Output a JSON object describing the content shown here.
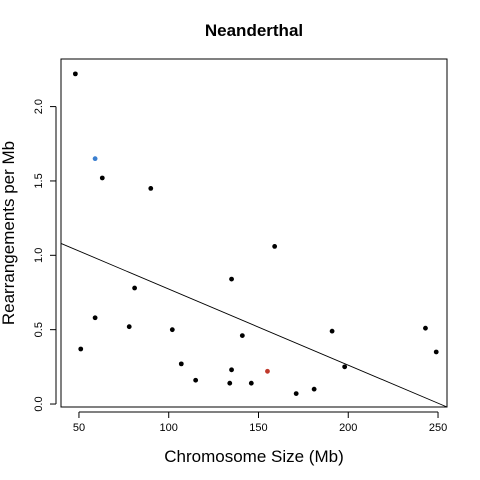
{
  "chart_data": {
    "type": "scatter",
    "title": "Neanderthal",
    "xlabel": "Chromosome Size (Mb)",
    "ylabel": "Rearrangements per Mb",
    "xlim": [
      40,
      255
    ],
    "ylim": [
      -0.02,
      2.32
    ],
    "xticks": [
      50,
      100,
      150,
      200,
      250
    ],
    "yticks": [
      0.0,
      0.5,
      1.0,
      1.5,
      2.0
    ],
    "ytick_labels": [
      "0.0",
      "0.5",
      "1.0",
      "1.5",
      "2.0"
    ],
    "grid": false,
    "points": [
      {
        "x": 48,
        "y": 2.22,
        "color": "#000000"
      },
      {
        "x": 59,
        "y": 1.65,
        "color": "#3a7fd0"
      },
      {
        "x": 63,
        "y": 1.52,
        "color": "#000000"
      },
      {
        "x": 90,
        "y": 1.45,
        "color": "#000000"
      },
      {
        "x": 159,
        "y": 1.06,
        "color": "#000000"
      },
      {
        "x": 135,
        "y": 0.84,
        "color": "#000000"
      },
      {
        "x": 81,
        "y": 0.78,
        "color": "#000000"
      },
      {
        "x": 59,
        "y": 0.58,
        "color": "#000000"
      },
      {
        "x": 78,
        "y": 0.52,
        "color": "#000000"
      },
      {
        "x": 102,
        "y": 0.5,
        "color": "#000000"
      },
      {
        "x": 243,
        "y": 0.51,
        "color": "#000000"
      },
      {
        "x": 191,
        "y": 0.49,
        "color": "#000000"
      },
      {
        "x": 141,
        "y": 0.46,
        "color": "#000000"
      },
      {
        "x": 51,
        "y": 0.37,
        "color": "#000000"
      },
      {
        "x": 249,
        "y": 0.35,
        "color": "#000000"
      },
      {
        "x": 107,
        "y": 0.27,
        "color": "#000000"
      },
      {
        "x": 198,
        "y": 0.25,
        "color": "#000000"
      },
      {
        "x": 135,
        "y": 0.23,
        "color": "#000000"
      },
      {
        "x": 155,
        "y": 0.22,
        "color": "#c0392b"
      },
      {
        "x": 115,
        "y": 0.16,
        "color": "#000000"
      },
      {
        "x": 134,
        "y": 0.14,
        "color": "#000000"
      },
      {
        "x": 146,
        "y": 0.14,
        "color": "#000000"
      },
      {
        "x": 181,
        "y": 0.1,
        "color": "#000000"
      },
      {
        "x": 171,
        "y": 0.07,
        "color": "#000000"
      }
    ],
    "regression_line": {
      "x": [
        40,
        255
      ],
      "y": [
        1.08,
        -0.02
      ]
    }
  }
}
